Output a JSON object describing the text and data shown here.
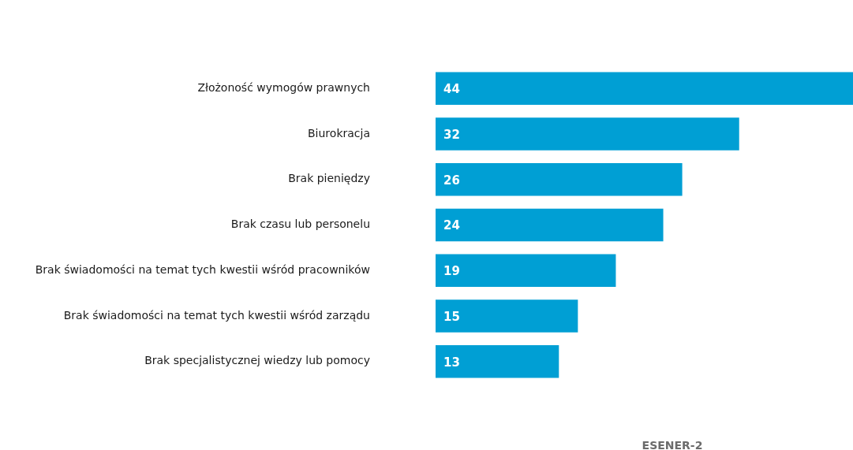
{
  "chart_data": {
    "type": "bar",
    "orientation": "horizontal",
    "categories": [
      "Złożoność wymogów prawnych",
      "Biurokracja",
      "Brak pieniędzy",
      "Brak czasu lub personelu",
      "Brak świadomości na temat tych kwestii wśród pracowników",
      "Brak świadomości na temat tych kwestii wśród zarządu",
      "Brak specjalistycznej wiedzy lub pomocy"
    ],
    "values": [
      44,
      32,
      26,
      24,
      19,
      15,
      13
    ],
    "color": "#009fd4",
    "data_labels": true,
    "grid": false,
    "legend": false,
    "tick_labels": "y",
    "annotations": [
      "ESENER-2"
    ]
  }
}
